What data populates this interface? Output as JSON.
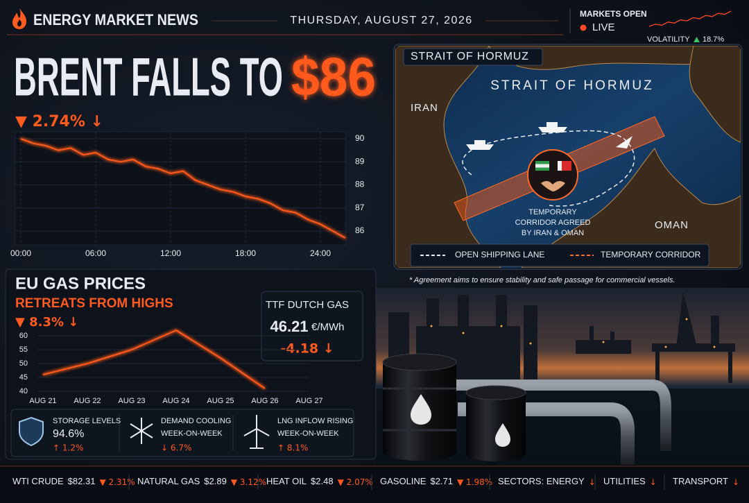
{
  "header": {
    "brand": "ENERGY MARKET NEWS",
    "date": "THURSDAY, AUGUST 27, 2026",
    "status": "MARKETS OPEN",
    "live": "LIVE",
    "volatility_label": "VOLATILITY",
    "volatility_change": "18.7%"
  },
  "headline": {
    "text": "BRENT FALLS TO",
    "price": "$86",
    "change": "▼ 2.74% ↓"
  },
  "chart_data": [
    {
      "type": "line",
      "x": [
        0,
        1,
        2,
        3,
        4,
        5,
        6,
        7,
        8,
        9,
        10,
        11,
        12,
        13,
        14,
        15,
        16,
        17,
        18,
        19,
        20,
        21,
        22,
        23,
        24,
        25,
        26
      ],
      "values": [
        90.0,
        89.8,
        89.7,
        89.5,
        89.6,
        89.3,
        89.4,
        89.1,
        89.0,
        89.1,
        88.8,
        88.7,
        88.5,
        88.6,
        88.2,
        88.0,
        87.8,
        87.7,
        87.5,
        87.4,
        87.2,
        86.9,
        86.8,
        86.5,
        86.3,
        86.0,
        85.7
      ],
      "color": "#ff5a1f",
      "xlim": [
        0,
        26
      ],
      "ylim": [
        85.4,
        90.3
      ],
      "xticks": [
        {
          "value": 0,
          "label": "00:00"
        },
        {
          "value": 6,
          "label": "06:00"
        },
        {
          "value": 12,
          "label": "12:00"
        },
        {
          "value": 18,
          "label": "18:00"
        },
        {
          "value": 24,
          "label": "24:00"
        }
      ],
      "yticks": [
        86,
        87,
        88,
        89,
        90
      ],
      "grid": true
    },
    {
      "type": "line",
      "categories": [
        "AUG 21",
        "AUG 22",
        "AUG 23",
        "AUG 24",
        "AUG 25",
        "AUG 26",
        "AUG 27"
      ],
      "values": [
        46,
        50,
        55,
        62,
        52,
        41,
        null
      ],
      "color": "#ff5a1f",
      "ylim": [
        39,
        65
      ],
      "yticks": [
        40,
        45,
        50,
        55,
        60
      ],
      "grid": true
    },
    {
      "type": "line",
      "values": [
        3,
        4,
        3.5,
        5,
        4.5,
        6,
        5.5,
        7,
        6.5,
        8,
        7.5,
        9,
        8.5,
        10
      ],
      "color": "#ff4a2a"
    }
  ],
  "eu_gas": {
    "title": "EU GAS PRICES",
    "subtitle": "RETREATS FROM HIGHS",
    "change": "▼ 8.3% ↓",
    "ttf": {
      "label": "TTF DUTCH GAS",
      "price": "46.21",
      "unit": "€/MWh",
      "change": "-4.18 ↓"
    },
    "stats": [
      {
        "label": "STORAGE LEVELS",
        "value": "94.6%",
        "change": "↑ 1.2%"
      },
      {
        "label": "DEMAND COOLING",
        "value": "WEEK-ON-WEEK",
        "change": "↓ 6.7%"
      },
      {
        "label": "LNG INFLOW RISING",
        "value": "WEEK-ON-WEEK",
        "change": "↑ 8.1%"
      }
    ]
  },
  "map": {
    "title": "STRAIT OF HORMUZ",
    "label": "STRAIT OF HORMUZ",
    "regions": [
      "IRAN",
      "OMAN"
    ],
    "corridor_note": [
      "TEMPORARY",
      "CORRIDOR AGREED",
      "BY IRAN & OMAN"
    ],
    "legend": [
      "OPEN SHIPPING LANE",
      "TEMPORARY CORRIDOR"
    ],
    "footnote": "* Agreement aims to ensure stability and safe passage for commercial vessels."
  },
  "ticker": [
    {
      "label": "WTI CRUDE",
      "price": "$82.31",
      "change": "▼ 2.31%"
    },
    {
      "label": "NATURAL GAS",
      "price": "$2.89",
      "change": "▼ 3.12%"
    },
    {
      "label": "HEAT OIL",
      "price": "$2.48",
      "change": "▼ 2.07%"
    },
    {
      "label": "GASOLINE",
      "price": "$2.71",
      "change": "▼ 1.98%"
    },
    {
      "label": "SECTORS: ENERGY",
      "change": "↓"
    },
    {
      "label": "UTILITIES",
      "change": "↓"
    },
    {
      "label": "TRANSPORT",
      "change": "↓"
    }
  ]
}
